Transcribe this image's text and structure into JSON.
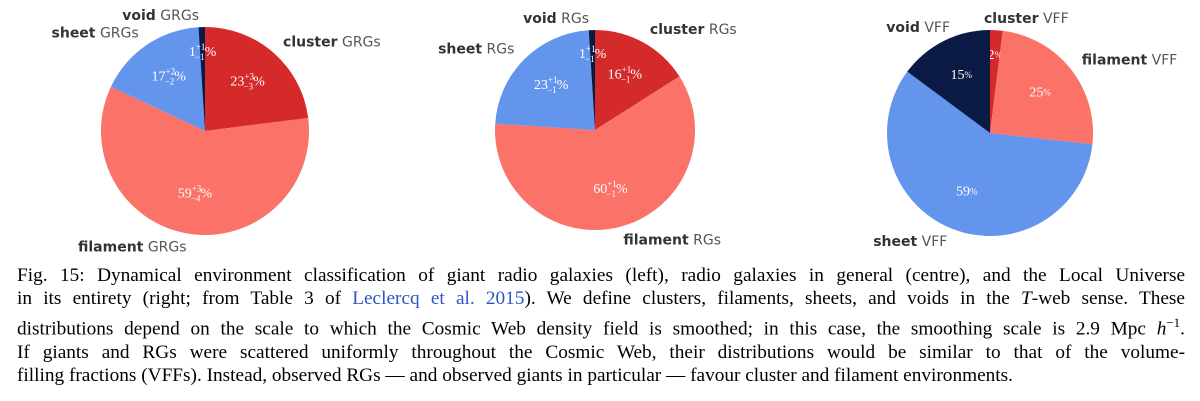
{
  "chart_data": [
    {
      "type": "pie",
      "suffix": "GRGs",
      "categories": [
        "cluster",
        "filament",
        "sheet",
        "void"
      ],
      "values": [
        23,
        59,
        17,
        1
      ],
      "err_plus": [
        "+3",
        "+3",
        "+2",
        "+1"
      ],
      "err_minus": [
        "−3",
        "−4",
        "−2",
        "−1"
      ],
      "label_suffix": "%",
      "colors": [
        "#d42a2a",
        "#fa7268",
        "#6495ed",
        "#0b1a45"
      ]
    },
    {
      "type": "pie",
      "suffix": "RGs",
      "categories": [
        "cluster",
        "filament",
        "sheet",
        "void"
      ],
      "values": [
        16,
        60,
        23,
        1
      ],
      "err_plus": [
        "+1",
        "+1",
        "+1",
        "+1"
      ],
      "err_minus": [
        "−1",
        "−1",
        "−1",
        "−1"
      ],
      "label_suffix": "%",
      "colors": [
        "#d42a2a",
        "#fa7268",
        "#6495ed",
        "#0b1a45"
      ]
    },
    {
      "type": "pie",
      "suffix": "VFF",
      "categories": [
        "cluster",
        "filament",
        "sheet",
        "void"
      ],
      "values": [
        2,
        25,
        59,
        15
      ],
      "label_suffix": "%",
      "colors": [
        "#d42a2a",
        "#fa7268",
        "#6495ed",
        "#0b1a45"
      ]
    }
  ],
  "caption": {
    "label": "Fig. 15:",
    "lines": [
      [
        {
          "text": " Dynamical environment classification of giant radio galaxies (left), radio galaxies in general (centre), and the Local Universe"
        }
      ],
      [
        {
          "text": "in its entirety (right; from Table 3 of "
        },
        {
          "text": "Leclercq et al. 2015",
          "link": true
        },
        {
          "text": "). We define clusters, filaments, sheets, and voids in the "
        },
        {
          "text": "T",
          "italic": true
        },
        {
          "text": "-web sense. These"
        }
      ],
      [
        {
          "text": "distributions depend on the scale to which the Cosmic Web density field is smoothed; in this case, the smoothing scale is 2.9 Mpc "
        },
        {
          "text": "h",
          "italic": true
        },
        {
          "text": "−1",
          "sup": true
        },
        {
          "text": "."
        }
      ],
      [
        {
          "text": "If giants and RGs were scattered uniformly throughout the Cosmic Web, their distributions would be similar to that of the volume-"
        }
      ],
      [
        {
          "text": "filling fractions (VFFs). Instead, observed RGs — and observed giants in particular — favour cluster and filament environments."
        }
      ]
    ]
  }
}
